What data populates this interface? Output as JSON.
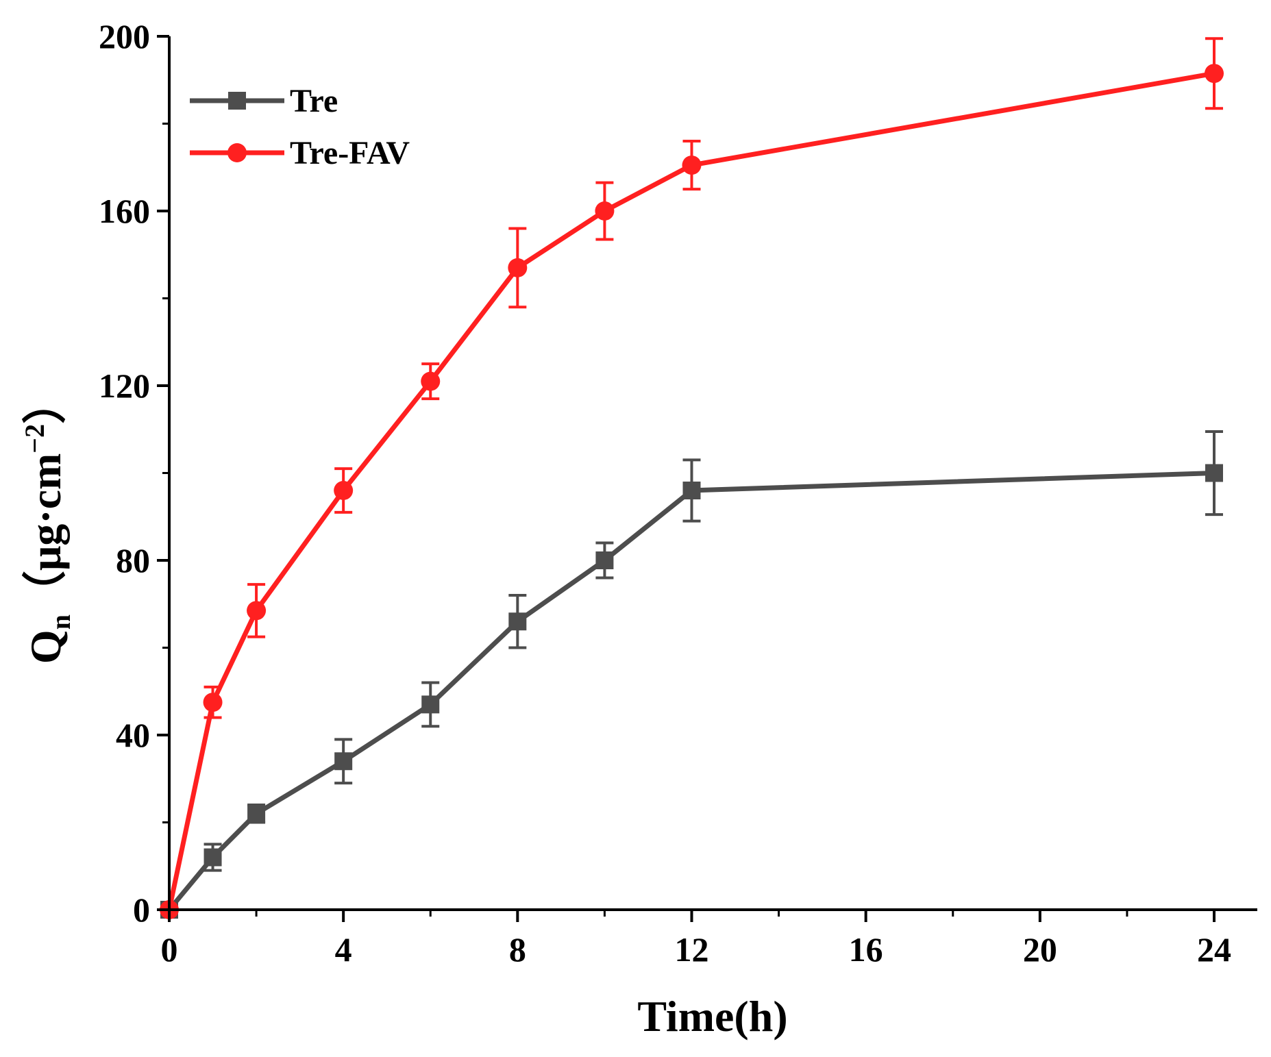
{
  "chart_data": {
    "type": "line",
    "title": "",
    "xlabel": "Time(h)",
    "ylabel": {
      "main": "Q",
      "sub": "n",
      "unit": "（μg·cm",
      "sup": "−2",
      "close": "）"
    },
    "xlim": [
      0,
      25
    ],
    "ylim": [
      0,
      200
    ],
    "x_ticks": [
      0,
      4,
      8,
      12,
      16,
      20,
      24
    ],
    "x_minor_ticks": [
      2,
      6,
      10,
      14,
      18,
      22
    ],
    "y_ticks": [
      0,
      40,
      80,
      120,
      160,
      200
    ],
    "y_minor_ticks": [
      20,
      60,
      100,
      140,
      180
    ],
    "grid": false,
    "legend_position": "top-left",
    "series": [
      {
        "name": "Tre",
        "color": "#4d4d4d",
        "marker": "square",
        "x": [
          0,
          1,
          2,
          4,
          6,
          8,
          10,
          12,
          24
        ],
        "values": [
          0,
          12,
          22,
          34,
          47,
          66,
          80,
          96,
          100
        ],
        "errors": [
          0,
          3,
          2,
          5,
          5,
          6,
          4,
          7,
          9.5
        ]
      },
      {
        "name": "Tre-FAV",
        "color": "#ff2020",
        "marker": "circle",
        "x": [
          0,
          1,
          2,
          4,
          6,
          8,
          10,
          12,
          24
        ],
        "values": [
          0,
          47.5,
          68.5,
          96,
          121,
          147,
          160,
          170.5,
          191.5
        ],
        "errors": [
          0,
          3.5,
          6,
          5,
          4,
          9,
          6.5,
          5.5,
          8
        ]
      }
    ]
  }
}
